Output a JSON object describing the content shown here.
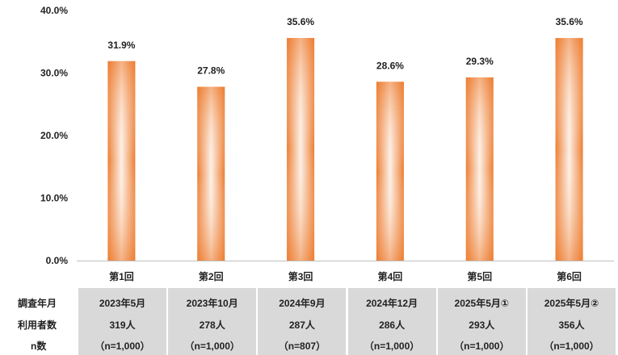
{
  "chart_data": {
    "type": "bar",
    "categories": [
      "第1回",
      "第2回",
      "第3回",
      "第4回",
      "第5回",
      "第6回"
    ],
    "values": [
      31.9,
      27.8,
      35.6,
      28.6,
      29.3,
      35.6
    ],
    "value_labels": [
      "31.9%",
      "27.8%",
      "35.6%",
      "28.6%",
      "29.3%",
      "35.6%"
    ],
    "yticks": [
      "0.0%",
      "10.0%",
      "20.0%",
      "30.0%",
      "40.0%"
    ],
    "ylim": [
      0,
      40
    ],
    "grid": false,
    "bar_colors": {
      "edge": "#ed7d31",
      "center": "#fdf0e6"
    }
  },
  "table": {
    "row_labels": [
      "調査年月",
      "利用者数",
      "n数"
    ],
    "columns": [
      {
        "date": "2023年5月",
        "users": "319人",
        "n": "（n=1,000）"
      },
      {
        "date": "2023年10月",
        "users": "278人",
        "n": "（n=1,000）"
      },
      {
        "date": "2024年9月",
        "users": "287人",
        "n": "（n=807）"
      },
      {
        "date": "2024年12月",
        "users": "286人",
        "n": "（n=1,000）"
      },
      {
        "date": "2025年5月①",
        "users": "293人",
        "n": "（n=1,000）"
      },
      {
        "date": "2025年5月②",
        "users": "356人",
        "n": "（n=1,000）"
      }
    ]
  }
}
